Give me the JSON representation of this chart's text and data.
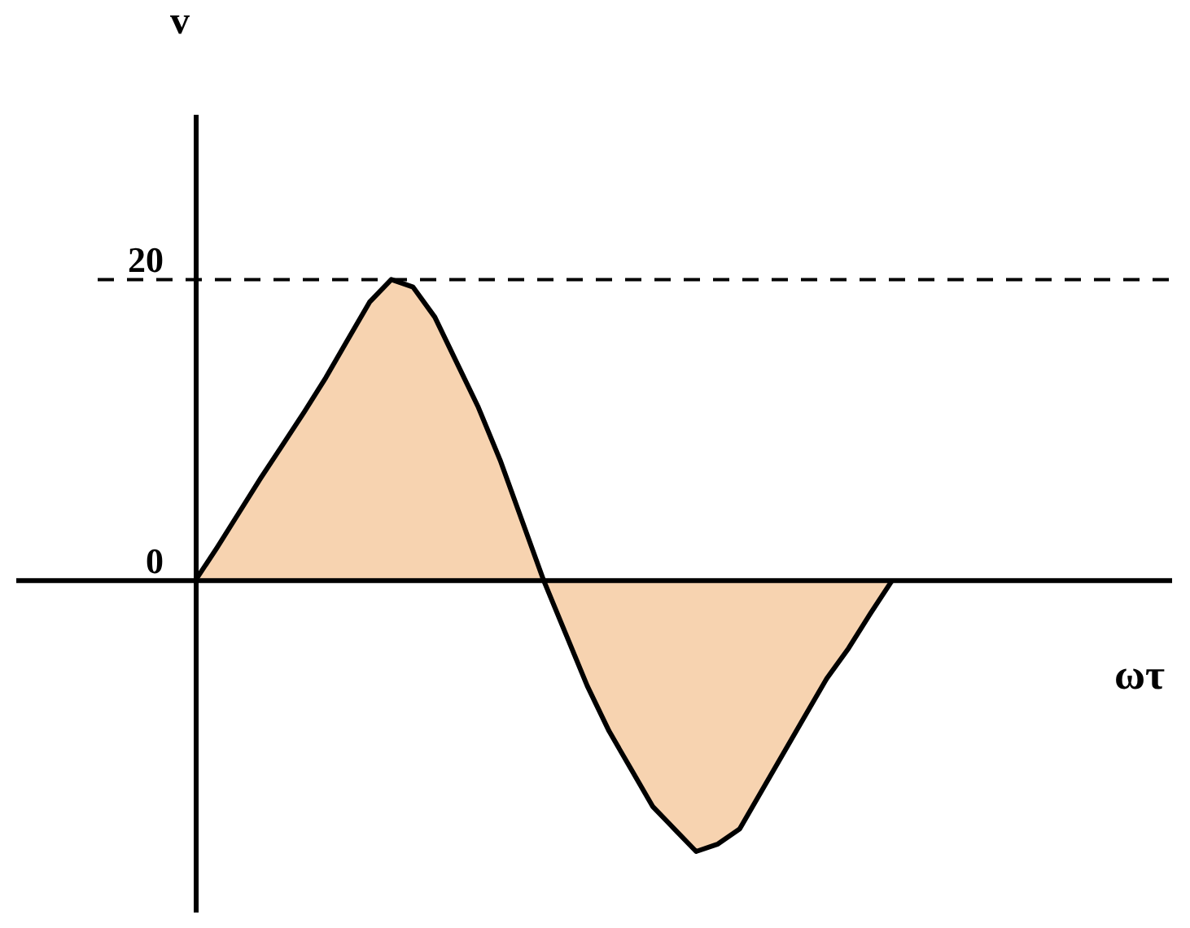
{
  "chart_data": {
    "type": "area",
    "xlabel": "ωτ",
    "ylabel": "v",
    "categories": [
      null,
      null,
      null,
      null,
      null,
      null,
      null,
      null,
      null,
      null,
      null,
      null,
      null,
      null,
      null,
      null,
      null,
      null,
      null,
      null,
      null,
      null,
      null,
      null,
      null,
      null,
      null,
      null,
      null,
      null,
      null,
      null,
      null
    ],
    "series": [
      {
        "color": "#f4c08e",
        "values": [
          0,
          2.2,
          4.5,
          6.8,
          9,
          11.2,
          13.5,
          16,
          18.5,
          20,
          19.5,
          17.5,
          14.5,
          11.5,
          8,
          4,
          0,
          -3.5,
          -7,
          -10,
          -12.5,
          -15,
          -16.5,
          -18,
          -17.5,
          -16.5,
          -14,
          -11.5,
          -9,
          -6.5,
          -4.5,
          -2.2,
          0
        ]
      }
    ],
    "ylim": [
      -22,
      31
    ],
    "yticks": [
      0,
      20
    ],
    "tick_labels": "y",
    "grid": false,
    "marker": "none",
    "line_style": "solid",
    "ref_lines": [
      {
        "axis": "y",
        "value": 20,
        "line_style": "dashed",
        "color": "#000000"
      }
    ]
  }
}
